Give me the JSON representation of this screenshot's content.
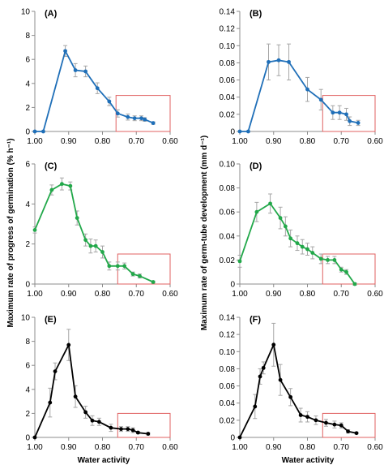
{
  "figure": {
    "y_label_left": "Maximum rate of progress of germination (% h⁻¹)",
    "y_label_right": "Maximum rate of germ-tube development (mm d⁻¹)",
    "x_label_left": "Water activity",
    "x_label_right": "Water activity"
  },
  "colors": {
    "blue": "#1f6fb8",
    "green": "#22a84a",
    "black": "#000000",
    "box": "#e06060",
    "errorbar": "#a6a6a6",
    "axis": "#8c8c8c"
  },
  "chart_data": [
    {
      "type": "line",
      "panel": "(A)",
      "color": "#1f6fb8",
      "xlim": [
        1.0,
        0.6
      ],
      "x_reversed": true,
      "ylim": [
        0,
        10
      ],
      "xticks": [
        "1.00",
        "0.90",
        "0.80",
        "0.70",
        "0.60"
      ],
      "yticks": [
        "0",
        "2",
        "4",
        "6",
        "8",
        "10"
      ],
      "x": [
        1.0,
        0.975,
        0.91,
        0.88,
        0.85,
        0.815,
        0.78,
        0.755,
        0.725,
        0.705,
        0.685,
        0.675,
        0.65
      ],
      "y": [
        0,
        0,
        6.7,
        5.1,
        5.0,
        3.6,
        2.5,
        1.5,
        1.2,
        1.1,
        1.1,
        1.0,
        0.7
      ],
      "err": [
        0,
        0,
        0.45,
        0.55,
        0.45,
        0.45,
        0.35,
        0.3,
        0.25,
        0.2,
        0.2,
        0.15,
        0.1
      ],
      "box": {
        "x": [
          0.76,
          0.6
        ],
        "y": [
          0,
          3.0
        ]
      }
    },
    {
      "type": "line",
      "panel": "(B)",
      "color": "#1f6fb8",
      "xlim": [
        1.0,
        0.6
      ],
      "x_reversed": true,
      "ylim": [
        0,
        0.14
      ],
      "xticks": [
        "1.00",
        "0.90",
        "0.80",
        "0.70",
        "0.60"
      ],
      "yticks": [
        "0",
        "0.02",
        "0.04",
        "0.06",
        "0.08",
        "0.10",
        "0.12",
        "0.14"
      ],
      "x": [
        1.0,
        0.975,
        0.915,
        0.885,
        0.855,
        0.8,
        0.76,
        0.725,
        0.705,
        0.685,
        0.675,
        0.65
      ],
      "y": [
        0,
        0,
        0.081,
        0.083,
        0.081,
        0.049,
        0.037,
        0.022,
        0.022,
        0.02,
        0.012,
        0.01
      ],
      "err": [
        0,
        0,
        0.021,
        0.018,
        0.021,
        0.014,
        0.012,
        0.008,
        0.008,
        0.007,
        0.005,
        0.003
      ],
      "box": {
        "x": [
          0.755,
          0.6
        ],
        "y": [
          0,
          0.042
        ]
      }
    },
    {
      "type": "line",
      "panel": "(C)",
      "color": "#22a84a",
      "xlim": [
        1.0,
        0.6
      ],
      "x_reversed": true,
      "ylim": [
        0,
        6
      ],
      "xticks": [
        "1.00",
        "0.90",
        "0.80",
        "0.70",
        "0.60"
      ],
      "yticks": [
        "0",
        "2",
        "4",
        "6"
      ],
      "x": [
        1.0,
        0.95,
        0.92,
        0.895,
        0.875,
        0.85,
        0.835,
        0.82,
        0.8,
        0.78,
        0.755,
        0.735,
        0.71,
        0.69,
        0.65
      ],
      "y": [
        2.7,
        4.7,
        5.0,
        4.9,
        3.3,
        2.2,
        1.9,
        1.9,
        1.6,
        0.9,
        0.9,
        0.9,
        0.5,
        0.4,
        0.1
      ],
      "err": [
        0.15,
        0.25,
        0.3,
        0.2,
        0.35,
        0.3,
        0.35,
        0.3,
        0.3,
        0.2,
        0.2,
        0.15,
        0.1,
        0.1,
        0.05
      ],
      "box": {
        "x": [
          0.755,
          0.6
        ],
        "y": [
          0,
          1.5
        ]
      }
    },
    {
      "type": "line",
      "panel": "(D)",
      "color": "#22a84a",
      "xlim": [
        1.0,
        0.6
      ],
      "x_reversed": true,
      "ylim": [
        0,
        0.1
      ],
      "xticks": [
        "1.00",
        "0.90",
        "0.80",
        "0.70",
        "0.60"
      ],
      "yticks": [
        "0",
        "0.02",
        "0.04",
        "0.06",
        "0.08",
        "0.10"
      ],
      "x": [
        1.0,
        0.95,
        0.91,
        0.88,
        0.865,
        0.85,
        0.83,
        0.815,
        0.8,
        0.785,
        0.76,
        0.74,
        0.72,
        0.7,
        0.685,
        0.66
      ],
      "y": [
        0.019,
        0.06,
        0.067,
        0.055,
        0.048,
        0.038,
        0.034,
        0.031,
        0.029,
        0.026,
        0.021,
        0.02,
        0.02,
        0.012,
        0.01,
        0.0
      ],
      "err": [
        0.005,
        0.008,
        0.008,
        0.009,
        0.008,
        0.007,
        0.006,
        0.006,
        0.005,
        0.005,
        0.004,
        0.003,
        0.003,
        0.002,
        0.002,
        0.001
      ],
      "box": {
        "x": [
          0.755,
          0.6
        ],
        "y": [
          0,
          0.025
        ]
      }
    },
    {
      "type": "line",
      "panel": "(E)",
      "color": "#000000",
      "xlim": [
        1.0,
        0.6
      ],
      "x_reversed": true,
      "ylim": [
        0,
        10
      ],
      "xticks": [
        "1.00",
        "0.90",
        "0.80",
        "0.70",
        "0.60"
      ],
      "yticks": [
        "0",
        "2",
        "4",
        "6",
        "8",
        "10"
      ],
      "x": [
        1.0,
        0.955,
        0.94,
        0.9,
        0.88,
        0.85,
        0.83,
        0.81,
        0.775,
        0.745,
        0.725,
        0.71,
        0.695,
        0.665
      ],
      "y": [
        0,
        2.9,
        5.5,
        7.7,
        3.4,
        2.1,
        1.4,
        1.3,
        0.8,
        0.7,
        0.7,
        0.6,
        0.4,
        0.3
      ],
      "err": [
        0,
        1.2,
        0.7,
        1.3,
        0.9,
        0.5,
        0.4,
        0.3,
        0.3,
        0.2,
        0.2,
        0.2,
        0.1,
        0.1
      ],
      "box": {
        "x": [
          0.755,
          0.6
        ],
        "y": [
          0,
          2.0
        ]
      }
    },
    {
      "type": "line",
      "panel": "(F)",
      "color": "#000000",
      "xlim": [
        1.0,
        0.6
      ],
      "x_reversed": true,
      "ylim": [
        0,
        0.14
      ],
      "xticks": [
        "1.00",
        "0.90",
        "0.80",
        "0.70",
        "0.60"
      ],
      "yticks": [
        "0",
        "0.02",
        "0.04",
        "0.06",
        "0.08",
        "0.10",
        "0.12",
        "0.14"
      ],
      "x": [
        1.0,
        0.955,
        0.94,
        0.93,
        0.9,
        0.88,
        0.85,
        0.82,
        0.8,
        0.775,
        0.745,
        0.72,
        0.7,
        0.68,
        0.655
      ],
      "y": [
        0,
        0.036,
        0.071,
        0.081,
        0.108,
        0.067,
        0.047,
        0.026,
        0.024,
        0.02,
        0.017,
        0.015,
        0.014,
        0.007,
        0.005
      ],
      "err": [
        0,
        0.014,
        0.009,
        0.007,
        0.025,
        0.018,
        0.01,
        0.008,
        0.006,
        0.005,
        0.004,
        0.004,
        0.003,
        0.002,
        0.001
      ],
      "box": {
        "x": [
          0.755,
          0.6
        ],
        "y": [
          0,
          0.028
        ]
      }
    }
  ]
}
